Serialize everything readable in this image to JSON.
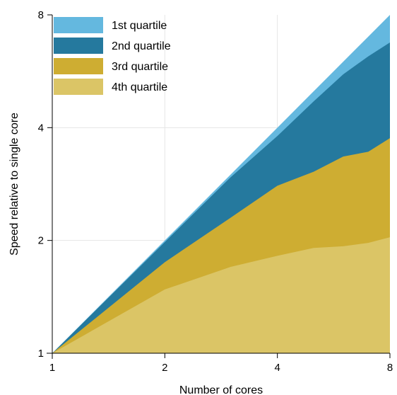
{
  "chart_data": {
    "type": "area",
    "stacked": false,
    "xlabel": "Number of cores",
    "ylabel": "Speed relative to single core",
    "x_scale": "log2",
    "y_scale": "log2",
    "xlim": [
      1,
      8
    ],
    "ylim": [
      1,
      8
    ],
    "x_ticks": [
      {
        "value": 1,
        "label": "1"
      },
      {
        "value": 2,
        "label": "2"
      },
      {
        "value": 4,
        "label": "4"
      },
      {
        "value": 8,
        "label": "8"
      }
    ],
    "y_ticks": [
      {
        "value": 1,
        "label": "1"
      },
      {
        "value": 2,
        "label": "2"
      },
      {
        "value": 4,
        "label": "4"
      },
      {
        "value": 8,
        "label": "8"
      }
    ],
    "grid": true,
    "legend_position": "top-left",
    "x": [
      1,
      2,
      3,
      4,
      5,
      6,
      7,
      8
    ],
    "series": [
      {
        "name": "1st quartile",
        "color": "#64b8df",
        "values": [
          1,
          2,
          3,
          4,
          5,
          6,
          7,
          8
        ]
      },
      {
        "name": "2nd quartile",
        "color": "#25799e",
        "values": [
          1,
          1.98,
          2.95,
          3.8,
          4.7,
          5.55,
          6.2,
          6.75
        ]
      },
      {
        "name": "3rd quartile",
        "color": "#cead32",
        "values": [
          1,
          1.75,
          2.3,
          2.8,
          3.05,
          3.35,
          3.45,
          3.75
        ]
      },
      {
        "name": "4th quartile",
        "color": "#dbc566",
        "values": [
          1,
          1.48,
          1.7,
          1.82,
          1.91,
          1.93,
          1.97,
          2.04
        ]
      }
    ]
  }
}
